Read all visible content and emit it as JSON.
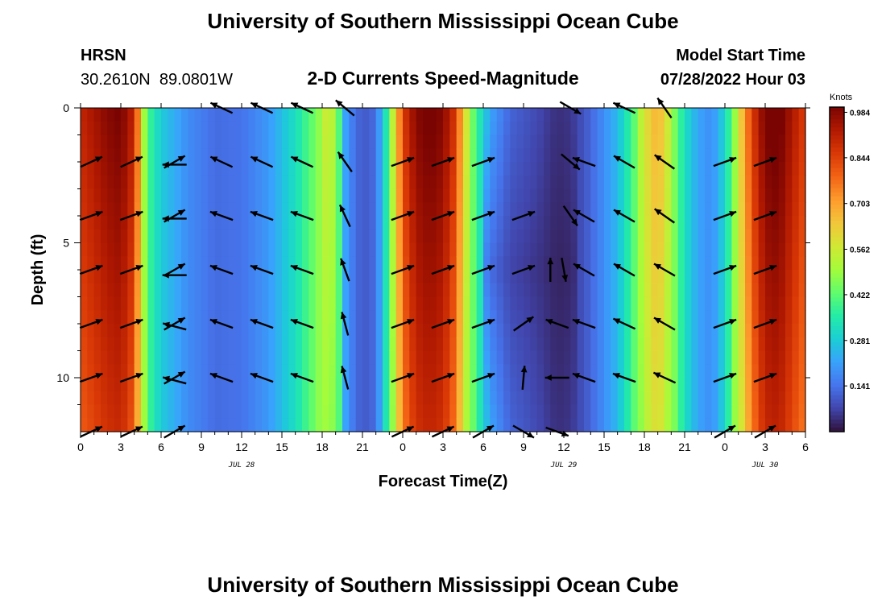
{
  "header": {
    "title": "University of Southern Mississippi Ocean Cube",
    "station": "HRSN",
    "coords": "30.2610N  89.0801W",
    "subtitle": "2-D Currents Speed-Magnitude",
    "model_label": "Model Start Time",
    "model_time": "07/28/2022 Hour 03"
  },
  "footer": {
    "title": "University of Southern Mississippi Ocean Cube"
  },
  "colors": {
    "arrow": "#000000",
    "ramp": [
      "#30123b",
      "#4145ab",
      "#4675ed",
      "#39a2fc",
      "#1bcfd4",
      "#24eca6",
      "#61fc6c",
      "#a4fc3b",
      "#d1e834",
      "#f3c63a",
      "#fe9b2d",
      "#f36315",
      "#d93806",
      "#b11901",
      "#7a0402"
    ]
  },
  "chart_data": {
    "type": "heatmap",
    "xlabel": "Forecast Time(Z)",
    "ylabel": "Depth (ft)",
    "x_tick_labels": [
      "0",
      "3",
      "6",
      "9",
      "12",
      "15",
      "18",
      "21",
      "0",
      "3",
      "6",
      "9",
      "12",
      "15",
      "18",
      "21",
      "0",
      "3",
      "6"
    ],
    "date_labels": [
      {
        "label": "JUL 28",
        "hour": 12
      },
      {
        "label": "JUL 29",
        "hour": 36
      },
      {
        "label": "JUL 30",
        "hour": 51
      }
    ],
    "xlim_hours": [
      0,
      54
    ],
    "y_ticks": [
      0,
      5,
      10
    ],
    "ylim": [
      0,
      12
    ],
    "colorbar": {
      "unit": "Knots",
      "ticks": [
        "0.984",
        "0.844",
        "0.703",
        "0.562",
        "0.422",
        "0.281",
        "0.141"
      ],
      "tick_values": [
        0.984,
        0.844,
        0.703,
        0.562,
        0.422,
        0.281,
        0.141
      ],
      "range": [
        0,
        1.0
      ]
    },
    "speed_profile_hours": [
      0,
      2,
      3,
      4,
      4.6,
      5,
      6,
      8,
      10,
      12,
      14,
      16,
      17.5,
      18.5,
      19.3,
      19.7,
      20.3,
      21,
      22,
      22.8,
      23.5,
      24,
      25,
      26,
      27,
      28,
      28.5,
      29.5,
      30.5,
      32,
      34,
      35.5,
      36.5,
      38,
      40,
      41,
      42,
      43,
      44,
      45,
      46,
      47,
      48,
      49,
      50,
      51,
      52,
      54
    ],
    "speed_profile_values": [
      0.85,
      0.93,
      0.95,
      0.85,
      0.55,
      0.4,
      0.28,
      0.18,
      0.13,
      0.14,
      0.2,
      0.32,
      0.45,
      0.55,
      0.4,
      0.22,
      0.15,
      0.1,
      0.13,
      0.35,
      0.6,
      0.8,
      0.93,
      0.96,
      0.93,
      0.8,
      0.6,
      0.38,
      0.22,
      0.12,
      0.08,
      0.04,
      0.05,
      0.12,
      0.25,
      0.38,
      0.55,
      0.65,
      0.5,
      0.32,
      0.22,
      0.18,
      0.3,
      0.55,
      0.8,
      0.95,
      0.97,
      0.8
    ],
    "arrow_columns_hours": [
      0.8,
      3.8,
      7,
      10.5,
      13.5,
      16.5,
      19.7,
      24,
      28.5,
      31.5,
      34.5,
      37.5,
      40.5,
      43.5,
      46.5,
      49.5,
      52.5
    ],
    "arrow_depths": [
      0,
      2,
      4,
      6,
      8,
      10,
      12
    ],
    "arrows": [
      {
        "h": 0.8,
        "d": 2,
        "a": -25
      },
      {
        "h": 0.8,
        "d": 4,
        "a": -20
      },
      {
        "h": 0.8,
        "d": 6,
        "a": -20
      },
      {
        "h": 0.8,
        "d": 8,
        "a": -20
      },
      {
        "h": 0.8,
        "d": 10,
        "a": -20
      },
      {
        "h": 0.8,
        "d": 12,
        "a": -25
      },
      {
        "h": 3.8,
        "d": 2,
        "a": -25
      },
      {
        "h": 3.8,
        "d": 4,
        "a": -20
      },
      {
        "h": 3.8,
        "d": 6,
        "a": -20
      },
      {
        "h": 3.8,
        "d": 8,
        "a": -20
      },
      {
        "h": 3.8,
        "d": 10,
        "a": -20
      },
      {
        "h": 3.8,
        "d": 12,
        "a": -25
      },
      {
        "h": 7,
        "d": 2,
        "a": -30
      },
      {
        "h": 7,
        "d": 2.1,
        "a": 180
      },
      {
        "h": 7,
        "d": 4,
        "a": -30
      },
      {
        "h": 7,
        "d": 4.1,
        "a": 180
      },
      {
        "h": 7,
        "d": 6,
        "a": -30
      },
      {
        "h": 7,
        "d": 6.2,
        "a": 180
      },
      {
        "h": 7,
        "d": 8,
        "a": -30
      },
      {
        "h": 7,
        "d": 8.1,
        "a": 195
      },
      {
        "h": 7,
        "d": 10,
        "a": -30
      },
      {
        "h": 7,
        "d": 10.1,
        "a": 195
      },
      {
        "h": 7,
        "d": 12,
        "a": -30
      },
      {
        "h": 10.5,
        "d": 0,
        "a": 205
      },
      {
        "h": 10.5,
        "d": 2,
        "a": 205
      },
      {
        "h": 10.5,
        "d": 4,
        "a": 200
      },
      {
        "h": 10.5,
        "d": 6,
        "a": 200
      },
      {
        "h": 10.5,
        "d": 8,
        "a": 200
      },
      {
        "h": 10.5,
        "d": 10,
        "a": 200
      },
      {
        "h": 13.5,
        "d": 0,
        "a": 205
      },
      {
        "h": 13.5,
        "d": 2,
        "a": 205
      },
      {
        "h": 13.5,
        "d": 4,
        "a": 200
      },
      {
        "h": 13.5,
        "d": 6,
        "a": 200
      },
      {
        "h": 13.5,
        "d": 8,
        "a": 200
      },
      {
        "h": 13.5,
        "d": 10,
        "a": 200
      },
      {
        "h": 16.5,
        "d": 0,
        "a": 205
      },
      {
        "h": 16.5,
        "d": 2,
        "a": 205
      },
      {
        "h": 16.5,
        "d": 4,
        "a": 200
      },
      {
        "h": 16.5,
        "d": 6,
        "a": 200
      },
      {
        "h": 16.5,
        "d": 8,
        "a": 200
      },
      {
        "h": 16.5,
        "d": 10,
        "a": 200
      },
      {
        "h": 19.7,
        "d": 0,
        "a": 220
      },
      {
        "h": 19.7,
        "d": 2,
        "a": 235
      },
      {
        "h": 19.7,
        "d": 4,
        "a": 245
      },
      {
        "h": 19.7,
        "d": 6,
        "a": 250
      },
      {
        "h": 19.7,
        "d": 8,
        "a": 255
      },
      {
        "h": 19.7,
        "d": 10,
        "a": 255
      },
      {
        "h": 24,
        "d": 2,
        "a": -20
      },
      {
        "h": 24,
        "d": 4,
        "a": -20
      },
      {
        "h": 24,
        "d": 6,
        "a": -20
      },
      {
        "h": 24,
        "d": 8,
        "a": -20
      },
      {
        "h": 24,
        "d": 10,
        "a": -20
      },
      {
        "h": 24,
        "d": 12,
        "a": -25
      },
      {
        "h": 27,
        "d": 2,
        "a": -20
      },
      {
        "h": 27,
        "d": 4,
        "a": -20
      },
      {
        "h": 27,
        "d": 6,
        "a": -20
      },
      {
        "h": 27,
        "d": 8,
        "a": -20
      },
      {
        "h": 27,
        "d": 10,
        "a": -20
      },
      {
        "h": 27,
        "d": 12,
        "a": -25
      },
      {
        "h": 30,
        "d": 2,
        "a": -20
      },
      {
        "h": 30,
        "d": 4,
        "a": -20
      },
      {
        "h": 30,
        "d": 6,
        "a": -20
      },
      {
        "h": 30,
        "d": 8,
        "a": -20
      },
      {
        "h": 30,
        "d": 10,
        "a": -20
      },
      {
        "h": 30,
        "d": 12,
        "a": -30
      },
      {
        "h": 33,
        "d": 4,
        "a": -20
      },
      {
        "h": 33,
        "d": 6,
        "a": -20
      },
      {
        "h": 33,
        "d": 8,
        "a": -35
      },
      {
        "h": 33,
        "d": 10,
        "a": -85
      },
      {
        "h": 33,
        "d": 12,
        "a": 30
      },
      {
        "h": 35,
        "d": 6,
        "a": -90
      },
      {
        "h": 36,
        "d": 6,
        "a": 80
      },
      {
        "h": 35.5,
        "d": 8,
        "a": 200
      },
      {
        "h": 35.5,
        "d": 10,
        "a": 180
      },
      {
        "h": 35.5,
        "d": 12,
        "a": 20
      },
      {
        "h": 36.5,
        "d": 0,
        "a": 30
      },
      {
        "h": 36.5,
        "d": 2,
        "a": 40
      },
      {
        "h": 36.5,
        "d": 4,
        "a": 55
      },
      {
        "h": 37.5,
        "d": 2,
        "a": 200
      },
      {
        "h": 37.5,
        "d": 4,
        "a": 210
      },
      {
        "h": 37.5,
        "d": 6,
        "a": 210
      },
      {
        "h": 37.5,
        "d": 8,
        "a": 200
      },
      {
        "h": 37.5,
        "d": 10,
        "a": 200
      },
      {
        "h": 40.5,
        "d": 0,
        "a": 205
      },
      {
        "h": 40.5,
        "d": 2,
        "a": 210
      },
      {
        "h": 40.5,
        "d": 4,
        "a": 210
      },
      {
        "h": 40.5,
        "d": 6,
        "a": 210
      },
      {
        "h": 40.5,
        "d": 8,
        "a": 205
      },
      {
        "h": 40.5,
        "d": 10,
        "a": 200
      },
      {
        "h": 43.5,
        "d": 0,
        "a": 235
      },
      {
        "h": 43.5,
        "d": 2,
        "a": 215
      },
      {
        "h": 43.5,
        "d": 4,
        "a": 215
      },
      {
        "h": 43.5,
        "d": 6,
        "a": 210
      },
      {
        "h": 43.5,
        "d": 8,
        "a": 210
      },
      {
        "h": 43.5,
        "d": 10,
        "a": 205
      },
      {
        "h": 48,
        "d": 2,
        "a": -20
      },
      {
        "h": 48,
        "d": 4,
        "a": -20
      },
      {
        "h": 48,
        "d": 6,
        "a": -20
      },
      {
        "h": 48,
        "d": 8,
        "a": -20
      },
      {
        "h": 48,
        "d": 10,
        "a": -20
      },
      {
        "h": 48,
        "d": 12,
        "a": -30
      },
      {
        "h": 51,
        "d": 2,
        "a": -20
      },
      {
        "h": 51,
        "d": 4,
        "a": -20
      },
      {
        "h": 51,
        "d": 6,
        "a": -20
      },
      {
        "h": 51,
        "d": 8,
        "a": -20
      },
      {
        "h": 51,
        "d": 10,
        "a": -20
      },
      {
        "h": 51,
        "d": 12,
        "a": -30
      }
    ]
  }
}
